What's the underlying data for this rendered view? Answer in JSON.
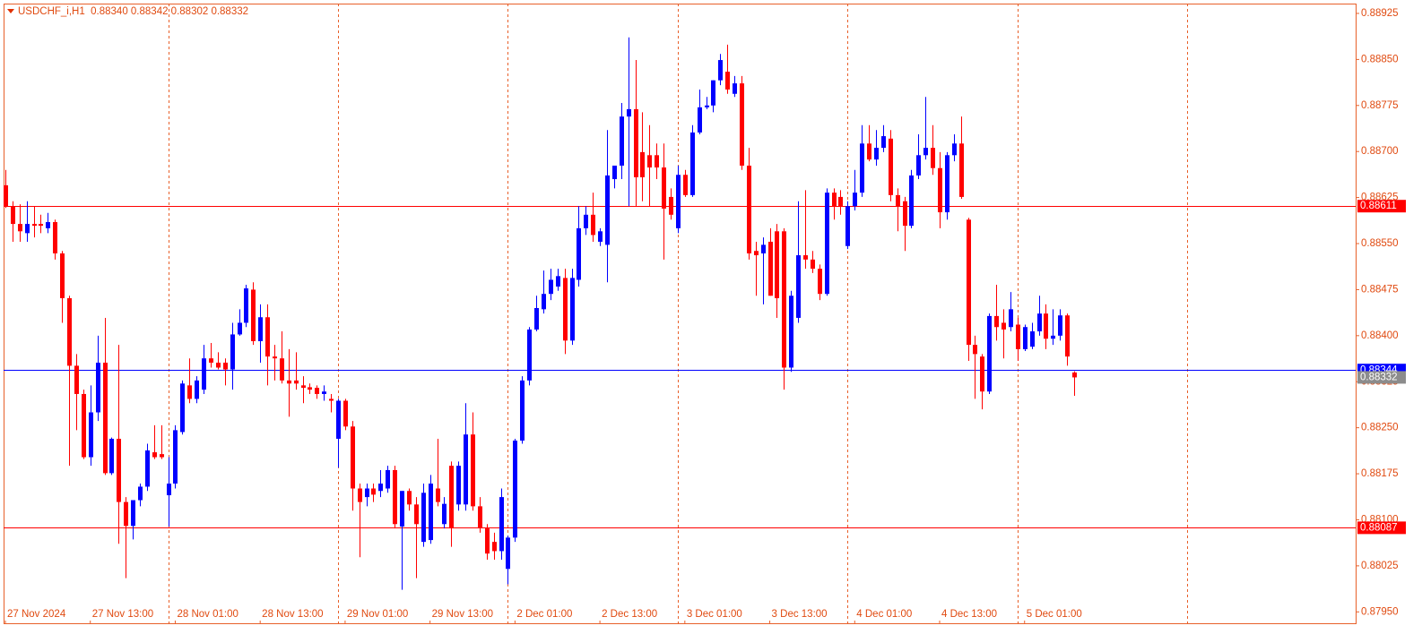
{
  "chart_data": {
    "type": "candlestick",
    "title": "USDCHF_i,H1  0.88340 0.88342 0.88302 0.88332",
    "bull_color": "#0000ff",
    "bear_color": "#ff0000",
    "bid_color": "#8c8c8c",
    "categories": [
      "27 Nov 2024",
      null,
      null,
      null,
      null,
      null,
      null,
      null,
      null,
      null,
      null,
      null,
      "27 Nov 13:00",
      null,
      null,
      null,
      null,
      null,
      null,
      null,
      null,
      null,
      null,
      null,
      "28 Nov 01:00",
      null,
      null,
      null,
      null,
      null,
      null,
      null,
      null,
      null,
      null,
      null,
      "28 Nov 13:00",
      null,
      null,
      null,
      null,
      null,
      null,
      null,
      null,
      null,
      null,
      null,
      "29 Nov 01:00",
      null,
      null,
      null,
      null,
      null,
      null,
      null,
      null,
      null,
      null,
      null,
      "29 Nov 13:00",
      null,
      null,
      null,
      null,
      null,
      null,
      null,
      null,
      null,
      null,
      null,
      "2 Dec 01:00",
      null,
      null,
      null,
      null,
      null,
      null,
      null,
      null,
      null,
      null,
      null,
      "2 Dec 13:00",
      null,
      null,
      null,
      null,
      null,
      null,
      null,
      null,
      null,
      null,
      null,
      "3 Dec 01:00",
      null,
      null,
      null,
      null,
      null,
      null,
      null,
      null,
      null,
      null,
      null,
      "3 Dec 13:00",
      null,
      null,
      null,
      null,
      null,
      null,
      null,
      null,
      null,
      null,
      null,
      "4 Dec 01:00",
      null,
      null,
      null,
      null,
      null,
      null,
      null,
      null,
      null,
      null,
      null,
      "4 Dec 13:00",
      null,
      null,
      null,
      null,
      null,
      null,
      null,
      null,
      null,
      null,
      null,
      "5 Dec 01:00",
      null,
      null,
      null,
      null,
      null,
      null,
      null
    ],
    "open": [
      0.88645,
      0.88611,
      0.88582,
      0.88567,
      0.88582,
      0.88582,
      0.88575,
      0.88585,
      0.88534,
      0.88461,
      0.88351,
      0.88305,
      0.88202,
      0.88275,
      0.88356,
      0.88176,
      0.88232,
      0.88129,
      0.8809,
      0.88132,
      0.88154,
      0.8821,
      0.88207,
      0.8814,
      0.88159,
      0.88243,
      0.88319,
      0.88297,
      0.88312,
      0.88363,
      0.88356,
      0.88356,
      0.88345,
      0.88402,
      0.88421,
      0.88475,
      0.88391,
      0.8843,
      0.88366,
      0.88363,
      0.88327,
      0.88327,
      0.88319,
      0.88316,
      0.88315,
      0.88305,
      0.88297,
      0.88232,
      0.88294,
      0.88252,
      0.88151,
      0.88137,
      0.88151,
      0.88147,
      0.88151,
      0.88181,
      0.88089,
      0.88147,
      0.88125,
      0.88064,
      0.88067,
      0.88151,
      0.88093,
      0.88188,
      0.88125,
      0.88125,
      0.88239,
      0.88122,
      0.88086,
      0.88064,
      0.88049,
      0.8802,
      0.88071,
      0.88229,
      0.88327,
      0.8841,
      0.88443,
      0.88468,
      0.8848,
      0.88494,
      0.88392,
      0.88491,
      0.88575,
      0.88597,
      0.88553,
      0.88548,
      0.88655,
      0.88677,
      0.88757,
      0.88769,
      0.88699,
      0.88694,
      0.88694,
      0.88674,
      0.88626,
      0.88575,
      0.88662,
      0.88629,
      0.88731,
      0.88772,
      0.88775,
      0.88816,
      0.8883,
      0.88794,
      0.88811,
      0.88677,
      0.88538,
      0.88534,
      0.88553,
      0.8857,
      0.8857,
      0.88348,
      0.88429,
      0.88531,
      0.88524,
      0.88509,
      0.88468,
      0.88633,
      0.88626,
      0.88546,
      0.88611,
      0.88633,
      0.88713,
      0.88687,
      0.88706,
      0.88721,
      0.88629,
      0.88619,
      0.88579,
      0.88661,
      0.88694,
      0.88706,
      0.88673,
      0.88601,
      0.88694,
      0.88713,
      0.88589,
      0.88385,
      0.88366,
      0.88309,
      0.88432,
      0.88421,
      0.88414,
      0.88418,
      0.88378,
      0.88382,
      0.88407,
      0.88436,
      0.88395,
      0.884,
      0.88433,
      0.8834
    ],
    "high": [
      0.8867,
      0.88619,
      0.88614,
      0.88619,
      0.88611,
      0.88597,
      0.886,
      0.88589,
      0.88538,
      0.88465,
      0.8837,
      0.88312,
      0.88319,
      0.884,
      0.88429,
      0.88234,
      0.88385,
      0.88137,
      0.88132,
      0.88159,
      0.88224,
      0.88254,
      0.88254,
      0.88202,
      0.88254,
      0.88327,
      0.88363,
      0.88334,
      0.88385,
      0.88388,
      0.88373,
      0.88363,
      0.88421,
      0.88443,
      0.88483,
      0.88487,
      0.88451,
      0.88451,
      0.88385,
      0.88407,
      0.88378,
      0.88373,
      0.88334,
      0.88322,
      0.88319,
      0.88319,
      0.88305,
      0.88297,
      0.88297,
      0.88261,
      0.88159,
      0.88159,
      0.88159,
      0.88181,
      0.88188,
      0.88188,
      0.88147,
      0.88151,
      0.88137,
      0.88159,
      0.88173,
      0.88232,
      0.88137,
      0.88195,
      0.88195,
      0.8829,
      0.88275,
      0.88137,
      0.88093,
      0.88079,
      0.88151,
      0.88074,
      0.88232,
      0.88334,
      0.88414,
      0.88465,
      0.88506,
      0.88509,
      0.88509,
      0.88509,
      0.88509,
      0.88611,
      0.88611,
      0.88633,
      0.88575,
      0.88735,
      0.88677,
      0.88779,
      0.88886,
      0.88849,
      0.88764,
      0.88743,
      0.88713,
      0.88713,
      0.8864,
      0.88677,
      0.8867,
      0.88743,
      0.88801,
      0.88789,
      0.88816,
      0.88859,
      0.88874,
      0.88823,
      0.88823,
      0.88706,
      0.88553,
      0.8856,
      0.88575,
      0.88582,
      0.88575,
      0.88473,
      0.88619,
      0.88637,
      0.88538,
      0.88516,
      0.8864,
      0.8864,
      0.88637,
      0.88619,
      0.8867,
      0.88743,
      0.88743,
      0.88735,
      0.88743,
      0.88735,
      0.8864,
      0.88626,
      0.8867,
      0.88728,
      0.88789,
      0.88743,
      0.88699,
      0.88699,
      0.88728,
      0.88757,
      0.88592,
      0.884,
      0.8837,
      0.88436,
      0.88483,
      0.88443,
      0.88471,
      0.88429,
      0.88418,
      0.88421,
      0.88465,
      0.88451,
      0.88443,
      0.88443,
      0.88436,
      0.88342
    ],
    "low": [
      0.88608,
      0.88553,
      0.88553,
      0.88553,
      0.8856,
      0.88567,
      0.88567,
      0.88524,
      0.88421,
      0.88188,
      0.88246,
      0.88199,
      0.88188,
      0.88261,
      0.88173,
      0.88173,
      0.88061,
      0.88005,
      0.88068,
      0.88122,
      0.88147,
      0.88199,
      0.88199,
      0.88089,
      0.88151,
      0.88239,
      0.8829,
      0.8829,
      0.88305,
      0.88348,
      0.88345,
      0.88319,
      0.88312,
      0.884,
      0.88414,
      0.88385,
      0.88356,
      0.88319,
      0.88327,
      0.88322,
      0.88268,
      0.88312,
      0.8829,
      0.88305,
      0.88297,
      0.88294,
      0.88275,
      0.88185,
      0.88246,
      0.88115,
      0.88039,
      0.88122,
      0.88129,
      0.88137,
      0.88144,
      0.88086,
      0.87986,
      0.88115,
      0.88005,
      0.88056,
      0.88061,
      0.88122,
      0.88086,
      0.88056,
      0.88115,
      0.88115,
      0.88115,
      0.88079,
      0.88035,
      0.88035,
      0.88035,
      0.87995,
      0.88064,
      0.88224,
      0.88319,
      0.88407,
      0.88436,
      0.88458,
      0.88473,
      0.8837,
      0.88385,
      0.8848,
      0.88564,
      0.88553,
      0.88546,
      0.88487,
      0.8864,
      0.88655,
      0.88611,
      0.88611,
      0.88619,
      0.88611,
      0.88655,
      0.88524,
      0.88589,
      0.88567,
      0.88626,
      0.88626,
      0.88728,
      0.88769,
      0.88764,
      0.88808,
      0.88794,
      0.88789,
      0.8867,
      0.88524,
      0.88465,
      0.88451,
      0.88465,
      0.88429,
      0.88312,
      0.88341,
      0.88421,
      0.88509,
      0.88502,
      0.88458,
      0.88465,
      0.88589,
      0.88597,
      0.88541,
      0.88604,
      0.88626,
      0.88684,
      0.88677,
      0.88699,
      0.88619,
      0.8857,
      0.88538,
      0.88575,
      0.88655,
      0.88687,
      0.88662,
      0.88575,
      0.88589,
      0.88684,
      0.88623,
      0.88359,
      0.88297,
      0.8828,
      0.88305,
      0.88392,
      0.88363,
      0.88407,
      0.88359,
      0.88375,
      0.88378,
      0.884,
      0.88378,
      0.88385,
      0.88392,
      0.88351,
      0.88302
    ],
    "close": [
      0.88611,
      0.88582,
      0.8857,
      0.88582,
      0.88579,
      0.88579,
      0.88585,
      0.88534,
      0.88461,
      0.88351,
      0.88305,
      0.88202,
      0.88275,
      0.88356,
      0.88176,
      0.88232,
      0.88129,
      0.8809,
      0.88132,
      0.88154,
      0.88213,
      0.88202,
      0.88202,
      0.88159,
      0.88246,
      0.88322,
      0.88297,
      0.88327,
      0.88363,
      0.88356,
      0.88348,
      0.88345,
      0.88402,
      0.88421,
      0.88477,
      0.88391,
      0.8843,
      0.88366,
      0.88363,
      0.88327,
      0.88322,
      0.88322,
      0.88315,
      0.88312,
      0.88305,
      0.88309,
      0.88294,
      0.88294,
      0.88252,
      0.88151,
      0.88129,
      0.88151,
      0.88141,
      0.88159,
      0.88181,
      0.88093,
      0.88147,
      0.88125,
      0.88093,
      0.88144,
      0.88159,
      0.88129,
      0.88126,
      0.88086,
      0.88188,
      0.88239,
      0.88122,
      0.88086,
      0.88045,
      0.88049,
      0.88137,
      0.88071,
      0.88229,
      0.88327,
      0.8841,
      0.88445,
      0.88468,
      0.88491,
      0.88497,
      0.88392,
      0.88494,
      0.88575,
      0.88597,
      0.88564,
      0.8857,
      0.88661,
      0.88677,
      0.88757,
      0.88769,
      0.88658,
      0.88658,
      0.88674,
      0.88674,
      0.88607,
      0.88597,
      0.88662,
      0.88629,
      0.88731,
      0.88772,
      0.88775,
      0.88816,
      0.88849,
      0.88801,
      0.88811,
      0.88677,
      0.88534,
      0.88531,
      0.88548,
      0.88465,
      0.88461,
      0.88348,
      0.88465,
      0.88531,
      0.88524,
      0.88509,
      0.88468,
      0.88633,
      0.88611,
      0.88611,
      0.88611,
      0.88633,
      0.88713,
      0.88687,
      0.88706,
      0.88725,
      0.88629,
      0.88611,
      0.88579,
      0.88661,
      0.88694,
      0.88706,
      0.88673,
      0.88601,
      0.88694,
      0.88713,
      0.88626,
      0.88385,
      0.8837,
      0.88309,
      0.88432,
      0.88414,
      0.8841,
      0.88443,
      0.88378,
      0.88414,
      0.88407,
      0.88436,
      0.88395,
      0.884,
      0.88433,
      0.88366,
      0.88332
    ],
    "ylim": [
      0.8793,
      0.88941
    ],
    "yticks": [
      0.88925,
      {
        "value": 0.8885,
        "label": "0.88850"
      },
      0.88775,
      {
        "value": 0.887,
        "label": "0.88700"
      },
      0.88625,
      {
        "value": 0.8855,
        "label": "0.88550"
      },
      0.88475,
      {
        "value": 0.884,
        "label": "0.88400"
      },
      0.88325,
      {
        "value": 0.8825,
        "label": "0.88250"
      },
      0.88175,
      {
        "value": 0.881,
        "label": "0.88100"
      },
      0.88025,
      {
        "value": 0.8795,
        "label": "0.87950"
      }
    ],
    "hlines": [
      {
        "value": 0.88611,
        "color": "#ff0000"
      },
      {
        "value": 0.88087,
        "color": "#ff0000"
      },
      {
        "value": 0.88344,
        "color": "#0000ff"
      }
    ],
    "bid": 0.88332
  }
}
